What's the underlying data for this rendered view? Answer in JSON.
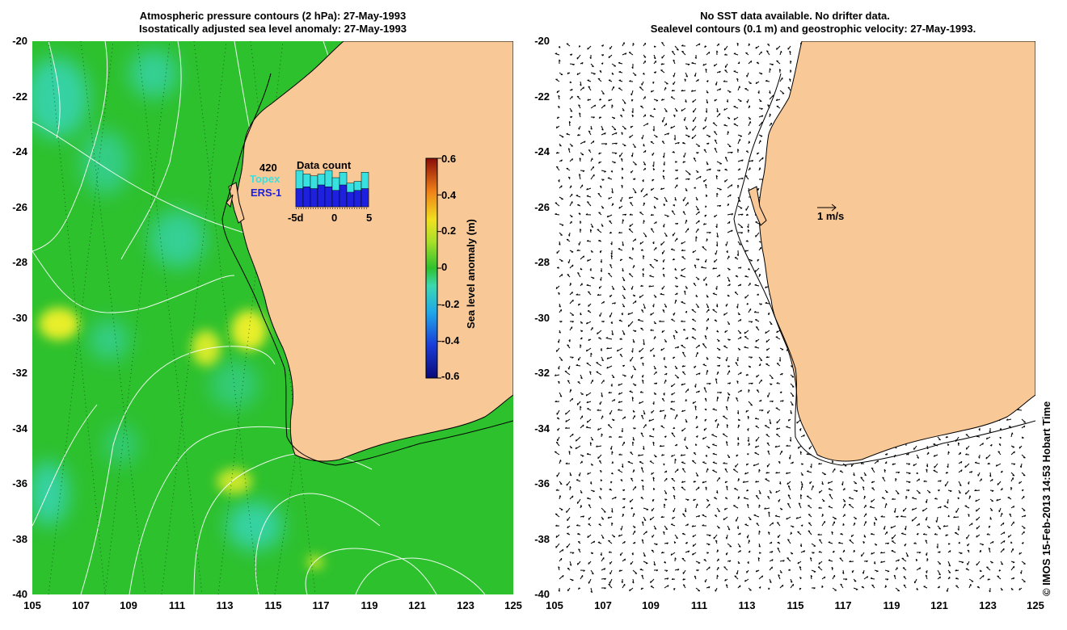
{
  "left": {
    "title_line1": "Atmospheric pressure contours (2 hPa): 27-May-1993",
    "title_line2": "Isostatically adjusted sea level anomaly: 27-May-1993",
    "data_count_total": "420",
    "data_count_title": "Data count",
    "mission1": "Topex",
    "mission2": "ERS-1",
    "hist_ticks": [
      "-5d",
      "0",
      "5"
    ],
    "hist_values_topex": [
      1.0,
      0.9,
      0.85,
      0.9,
      1.0,
      0.8,
      0.95,
      0.65,
      0.7,
      0.95
    ],
    "hist_values_ers": [
      0.5,
      0.55,
      0.5,
      0.6,
      0.55,
      0.45,
      0.6,
      0.4,
      0.45,
      0.5
    ],
    "colorbar_label": "Sea level anomaly (m)",
    "colorbar_ticks": [
      "0.6",
      "0.4",
      "0.2",
      "0",
      "-0.2",
      "-0.4",
      "-0.6"
    ]
  },
  "right": {
    "title_line1": "No SST data available.  No drifter data.",
    "title_line2": "Sealevel contours (0.1 m) and geostrophic velocity: 27-May-1993.",
    "scale_label": "1 m/s"
  },
  "axes": {
    "lat_ticks": [
      "-20",
      "-22",
      "-24",
      "-26",
      "-28",
      "-30",
      "-32",
      "-34",
      "-36",
      "-38",
      "-40"
    ],
    "lon_ticks": [
      "105",
      "107",
      "109",
      "111",
      "113",
      "115",
      "117",
      "119",
      "121",
      "123",
      "125"
    ]
  },
  "credit": "© IMOS 15-Feb-2013 14:53 Hobart Time",
  "colors": {
    "land": "#f9c897",
    "ocean": "#2ec12e",
    "blob_high": "#e8ee2a",
    "blob_low": "#38d6c0"
  }
}
